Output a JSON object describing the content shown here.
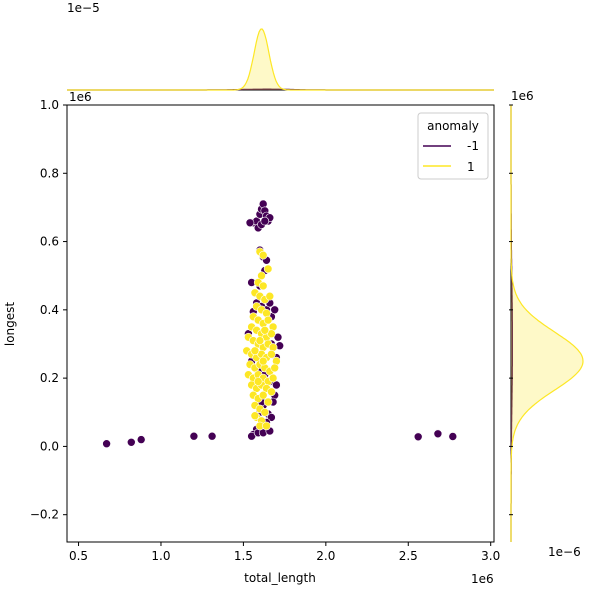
{
  "chart_data": {
    "type": "scatter",
    "xlabel": "total_length",
    "ylabel": "longest",
    "xlim": [
      0.43,
      3.02
    ],
    "ylim": [
      -0.28,
      1.0
    ],
    "x_offset_label": "1e6",
    "y_offset_label": "1e6",
    "top_marginal_offset_label": "1e−5",
    "right_marginal_offset_label": "1e−6",
    "x_ticks": [
      0.5,
      1.0,
      1.5,
      2.0,
      2.5,
      3.0
    ],
    "x_tick_labels": [
      "0.5",
      "1.0",
      "1.5",
      "2.0",
      "2.5",
      "3.0"
    ],
    "y_ticks": [
      -0.2,
      0.0,
      0.2,
      0.4,
      0.6,
      0.8,
      1.0
    ],
    "y_tick_labels": [
      "−0.2",
      "0.0",
      "0.2",
      "0.4",
      "0.6",
      "0.8",
      "1.0"
    ],
    "legend": {
      "title": "anomaly",
      "placement": "upper-right",
      "entries": [
        {
          "label": "-1",
          "color": "#440154"
        },
        {
          "label": "1",
          "color": "#fde725"
        }
      ]
    },
    "series": [
      {
        "name": "-1",
        "color": "#440154",
        "points": [
          [
            0.67,
            0.008
          ],
          [
            0.82,
            0.012
          ],
          [
            0.88,
            0.02
          ],
          [
            1.2,
            0.03
          ],
          [
            1.31,
            0.03
          ],
          [
            2.56,
            0.028
          ],
          [
            2.68,
            0.037
          ],
          [
            2.77,
            0.029
          ],
          [
            1.56,
            0.655
          ],
          [
            1.58,
            0.66
          ],
          [
            1.6,
            0.68
          ],
          [
            1.61,
            0.695
          ],
          [
            1.62,
            0.71
          ],
          [
            1.63,
            0.69
          ],
          [
            1.64,
            0.675
          ],
          [
            1.65,
            0.66
          ],
          [
            1.66,
            0.67
          ],
          [
            1.59,
            0.64
          ],
          [
            1.61,
            0.65
          ],
          [
            1.63,
            0.66
          ],
          [
            1.54,
            0.655
          ],
          [
            1.6,
            0.575
          ],
          [
            1.62,
            0.555
          ],
          [
            1.64,
            0.545
          ],
          [
            1.63,
            0.515
          ],
          [
            1.55,
            0.48
          ],
          [
            1.6,
            0.47
          ],
          [
            1.58,
            0.42
          ],
          [
            1.61,
            0.41
          ],
          [
            1.64,
            0.4
          ],
          [
            1.67,
            0.38
          ],
          [
            1.66,
            0.42
          ],
          [
            1.69,
            0.4
          ],
          [
            1.56,
            0.395
          ],
          [
            1.71,
            0.32
          ],
          [
            1.72,
            0.295
          ],
          [
            1.7,
            0.26
          ],
          [
            1.59,
            0.22
          ],
          [
            1.63,
            0.21
          ],
          [
            1.66,
            0.19
          ],
          [
            1.7,
            0.18
          ],
          [
            1.69,
            0.15
          ],
          [
            1.68,
            0.13
          ],
          [
            1.62,
            0.12
          ],
          [
            1.6,
            0.1
          ],
          [
            1.65,
            0.095
          ],
          [
            1.67,
            0.085
          ],
          [
            1.64,
            0.07
          ],
          [
            1.6,
            0.055
          ],
          [
            1.58,
            0.05
          ],
          [
            1.56,
            0.035
          ],
          [
            1.55,
            0.03
          ],
          [
            1.59,
            0.04
          ],
          [
            1.62,
            0.04
          ],
          [
            1.66,
            0.045
          ],
          [
            1.61,
            0.13
          ],
          [
            1.57,
            0.18
          ],
          [
            1.55,
            0.25
          ],
          [
            1.53,
            0.33
          ],
          [
            1.67,
            0.3
          ]
        ]
      },
      {
        "name": "1",
        "color": "#fde725",
        "points": [
          [
            1.6,
            0.57
          ],
          [
            1.62,
            0.56
          ],
          [
            1.65,
            0.52
          ],
          [
            1.61,
            0.5
          ],
          [
            1.59,
            0.48
          ],
          [
            1.62,
            0.47
          ],
          [
            1.57,
            0.45
          ],
          [
            1.6,
            0.44
          ],
          [
            1.63,
            0.43
          ],
          [
            1.66,
            0.44
          ],
          [
            1.58,
            0.41
          ],
          [
            1.61,
            0.4
          ],
          [
            1.64,
            0.39
          ],
          [
            1.56,
            0.38
          ],
          [
            1.59,
            0.37
          ],
          [
            1.62,
            0.36
          ],
          [
            1.65,
            0.37
          ],
          [
            1.68,
            0.35
          ],
          [
            1.55,
            0.35
          ],
          [
            1.58,
            0.34
          ],
          [
            1.61,
            0.33
          ],
          [
            1.64,
            0.32
          ],
          [
            1.67,
            0.33
          ],
          [
            1.53,
            0.32
          ],
          [
            1.56,
            0.31
          ],
          [
            1.59,
            0.3
          ],
          [
            1.62,
            0.29
          ],
          [
            1.65,
            0.3
          ],
          [
            1.68,
            0.29
          ],
          [
            1.52,
            0.28
          ],
          [
            1.55,
            0.27
          ],
          [
            1.58,
            0.26
          ],
          [
            1.61,
            0.27
          ],
          [
            1.64,
            0.26
          ],
          [
            1.67,
            0.27
          ],
          [
            1.7,
            0.25
          ],
          [
            1.54,
            0.24
          ],
          [
            1.57,
            0.23
          ],
          [
            1.6,
            0.24
          ],
          [
            1.63,
            0.23
          ],
          [
            1.66,
            0.22
          ],
          [
            1.69,
            0.23
          ],
          [
            1.53,
            0.21
          ],
          [
            1.56,
            0.2
          ],
          [
            1.59,
            0.21
          ],
          [
            1.62,
            0.2
          ],
          [
            1.65,
            0.19
          ],
          [
            1.68,
            0.2
          ],
          [
            1.55,
            0.18
          ],
          [
            1.58,
            0.17
          ],
          [
            1.61,
            0.18
          ],
          [
            1.64,
            0.17
          ],
          [
            1.67,
            0.16
          ],
          [
            1.56,
            0.15
          ],
          [
            1.59,
            0.14
          ],
          [
            1.62,
            0.15
          ],
          [
            1.65,
            0.13
          ],
          [
            1.57,
            0.12
          ],
          [
            1.6,
            0.11
          ],
          [
            1.63,
            0.1
          ],
          [
            1.58,
            0.085
          ],
          [
            1.61,
            0.075
          ],
          [
            1.6,
            0.06
          ],
          [
            1.64,
            0.06
          ],
          [
            1.57,
            0.09
          ],
          [
            1.63,
            0.34
          ],
          [
            1.6,
            0.31
          ],
          [
            1.57,
            0.28
          ],
          [
            1.62,
            0.25
          ],
          [
            1.59,
            0.19
          ]
        ]
      }
    ],
    "marginal_top": {
      "series": [
        {
          "name": "-1",
          "color": "#440154",
          "center": 1.64,
          "sd": 0.15,
          "height": 0.012
        },
        {
          "name": "1",
          "color": "#fde725",
          "center": 1.61,
          "sd": 0.045,
          "height": 0.85
        }
      ]
    },
    "marginal_right": {
      "series": [
        {
          "name": "-1",
          "color": "#440154",
          "center": 0.3,
          "sd": 0.18,
          "height": 0.02
        },
        {
          "name": "1",
          "color": "#fde725",
          "center": 0.25,
          "sd": 0.085,
          "height": 1.0
        }
      ]
    }
  }
}
